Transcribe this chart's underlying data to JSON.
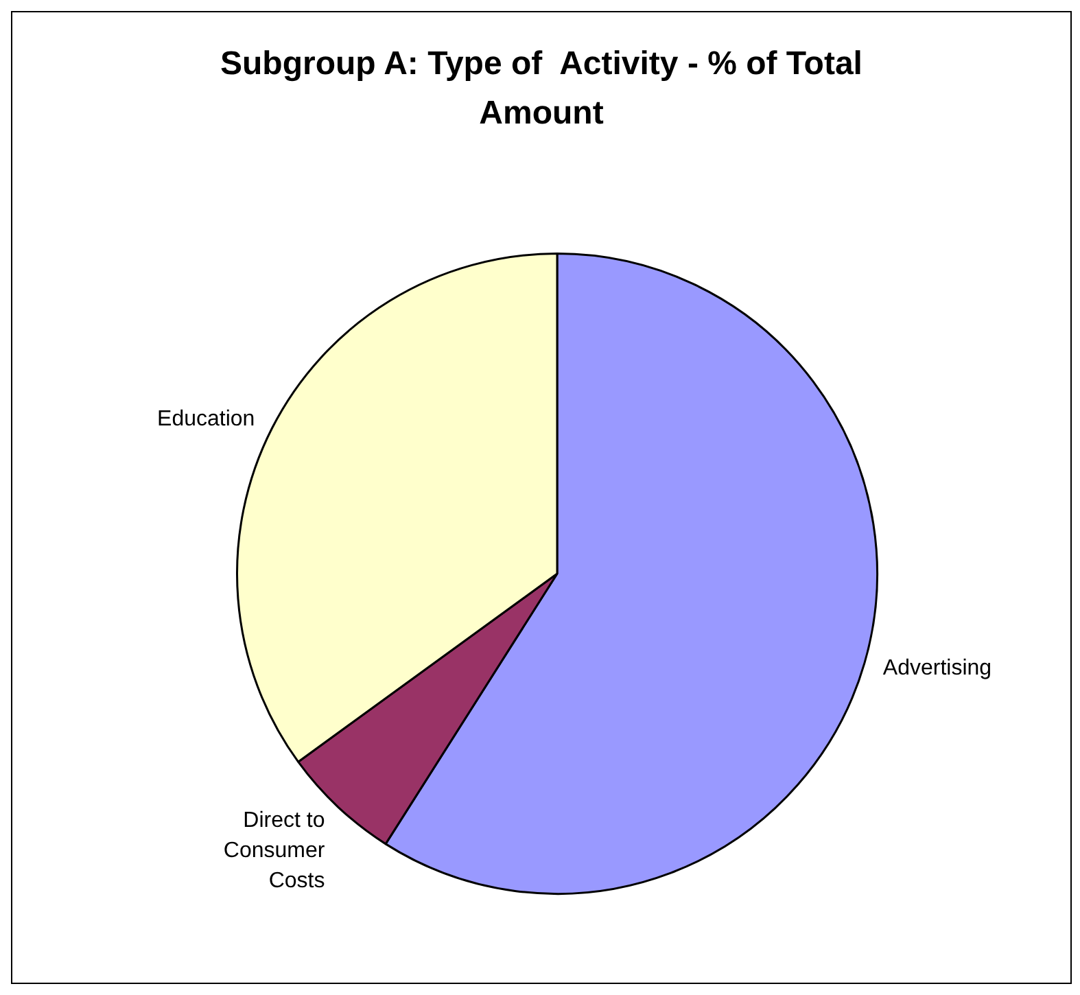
{
  "chart_data": {
    "type": "pie",
    "title": "Subgroup A: Type of  Activity - % of Total Amount",
    "categories": [
      "Advertising",
      "Direct to Consumer Costs",
      "Education"
    ],
    "values": [
      59,
      6,
      35
    ],
    "colors": [
      "#9999ff",
      "#993366",
      "#ffffcc"
    ],
    "legend": false
  }
}
